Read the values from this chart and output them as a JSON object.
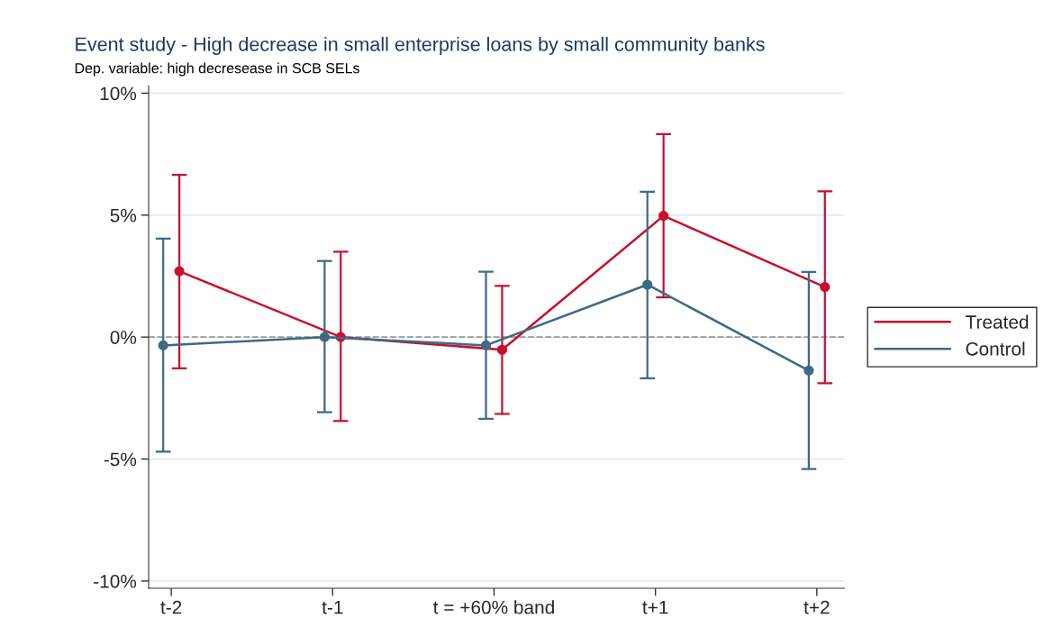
{
  "chart_data": {
    "type": "line",
    "title": "Event study - High decrease in small enterprise loans by small community banks",
    "subtitle": "Dep. variable: high decresease in SCB SELs",
    "categories": [
      "t-2",
      "t-1",
      "t = +60% band",
      "t+1",
      "t+2"
    ],
    "ylim": [
      -10.3,
      10.3
    ],
    "yticks": [
      {
        "value": -10,
        "label": "-10%"
      },
      {
        "value": -5,
        "label": "-5%"
      },
      {
        "value": 0,
        "label": "0%"
      },
      {
        "value": 5,
        "label": "5%"
      },
      {
        "value": 10,
        "label": "10%"
      }
    ],
    "series": [
      {
        "name": "Treated",
        "color": "#c8102e",
        "values": [
          2.7,
          0,
          -0.52,
          4.97,
          2.05
        ],
        "errors": [
          [
            -1.28,
            6.65
          ],
          [
            -3.44,
            3.5
          ],
          [
            -3.15,
            2.1
          ],
          [
            1.63,
            8.32
          ],
          [
            -1.89,
            5.98
          ]
        ]
      },
      {
        "name": "Control",
        "color": "#3e6a85",
        "values": [
          -0.34,
          0,
          -0.34,
          2.15,
          -1.37
        ],
        "errors": [
          [
            -4.7,
            4.04
          ],
          [
            -3.08,
            3.12
          ],
          [
            -3.35,
            2.68
          ],
          [
            -1.69,
            5.96
          ],
          [
            -5.41,
            2.67
          ]
        ]
      }
    ],
    "ref_lines": [
      {
        "axis": "y",
        "value": 0,
        "color": "#999999",
        "line_style": "dashed"
      }
    ],
    "marker": "circle",
    "line_style": "solid",
    "grid": "y",
    "legend": "right"
  }
}
